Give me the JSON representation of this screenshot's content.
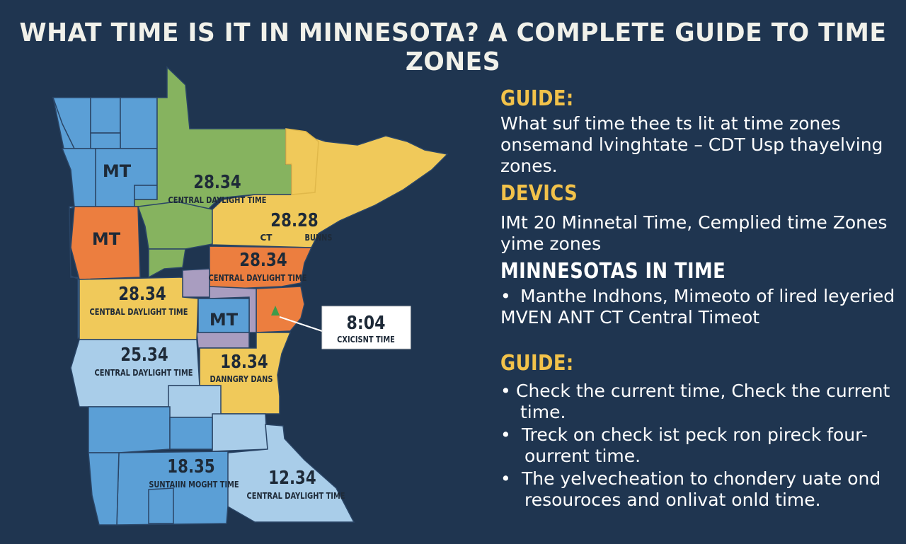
{
  "title": "WHAT TIME IS IT IN MINNESOTA? A COMPLETE GUIDE TO TIME ZONES",
  "map": {
    "labels": {
      "mt1": "MT",
      "mt2": "MT",
      "mt3": "MT",
      "a_num": "28.34",
      "a_sub": "CENTRAL DAYLIGHT TIME",
      "b_num": "28.28",
      "b_sub1": "CT",
      "b_sub2": "BUNNS",
      "c_num": "28.34",
      "c_sub": "CENTRAL DAYLIGHT TIME",
      "d_num": "28.34",
      "d_sub": "CENTBAL DAYLIGHT TIME",
      "e_num": "25.34",
      "e_sub": "CENTRAL DAYLIGHT TIME",
      "f_num": "18.34",
      "f_sub": "DANNGRY DANS",
      "g_num": "18.35",
      "g_sub": "SUNTAIIN MOGHT TIME",
      "h_num": "12.34",
      "h_sub": "CENTRAL DAYLIGHT TIME"
    },
    "callout": {
      "time": "8:04",
      "label": "CXICISNT TIME"
    },
    "colors": {
      "blue": "#5b9fd6",
      "light_blue": "#a9cde9",
      "green": "#86b35f",
      "yellow": "#f0c95a",
      "orange": "#ec7e3f",
      "purple": "#a99dc0",
      "background": "#1f3550",
      "heading_gold": "#f2c24a"
    }
  },
  "panel": {
    "s1": {
      "heading": "GUIDE:",
      "lines": [
        "What suf time thee ts lit at time zones",
        "onsemand lvinghtate – CDT Usp thayelving",
        "zones."
      ]
    },
    "s2": {
      "heading": "DEVICS",
      "lines": [
        "IMt 20 Minnetal Time, Cemplied time Zones",
        "yime zones"
      ]
    },
    "s3": {
      "heading": "MINNESOTAS IN TIME",
      "bullet": [
        "Manthe Indhons, Mimeoto of lired leyeried",
        "MVEN ANT CT Central Timeot"
      ]
    },
    "s4": {
      "heading": "GUIDE:",
      "bullets": [
        [
          "Check the current time, Check the current",
          "time."
        ],
        [
          "Treck on check ist peck ron pireck four-",
          "ourrent time."
        ],
        [
          "The yelvecheation to chondery uate ond",
          "resouroces and onlivat onld time."
        ]
      ]
    }
  }
}
